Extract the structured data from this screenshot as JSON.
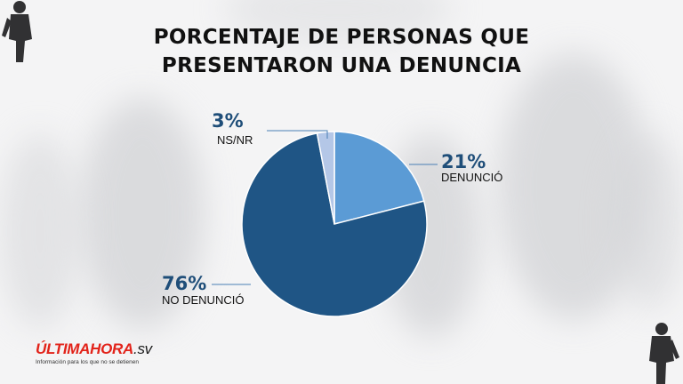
{
  "title_lines": [
    "PORCENTAJE DE PERSONAS QUE",
    "PRESENTARON UNA DENUNCIA"
  ],
  "chart_data": {
    "type": "pie",
    "title": "PORCENTAJE DE PERSONAS QUE PRESENTARON UNA DENUNCIA",
    "slices": [
      {
        "label": "DENUNCIÓ",
        "value": 21,
        "display": "21%",
        "color": "#5b9bd5"
      },
      {
        "label": "NO DENUNCIÓ",
        "value": 76,
        "display": "76%",
        "color": "#1f5585"
      },
      {
        "label": "NS/NR",
        "value": 3,
        "display": "3%",
        "color": "#b4c7e7"
      }
    ],
    "start_angle": "12 o'clock, clockwise"
  },
  "logo": {
    "part1": "ÚLTIMA",
    "part2": "HORA",
    "part3": ".sv",
    "tagline": "Información para los que no se detienen"
  }
}
